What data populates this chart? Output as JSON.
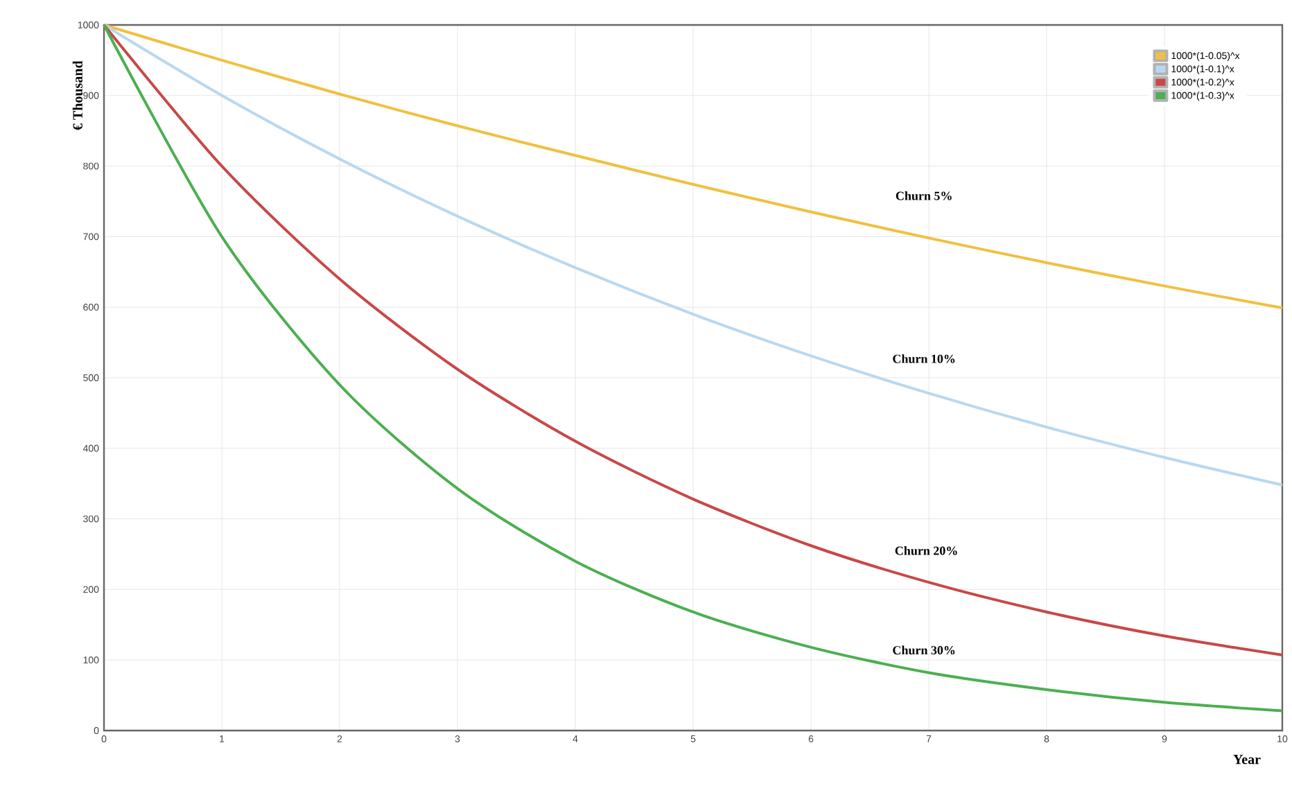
{
  "chart_data": {
    "type": "line",
    "xlabel": "Year",
    "ylabel": "€ Thousand",
    "x": [
      0,
      1,
      2,
      3,
      4,
      5,
      6,
      7,
      8,
      9,
      10
    ],
    "series": [
      {
        "name": "1000*(1-0.05)^x",
        "color": "#f0c040",
        "values": [
          1000,
          950,
          902,
          857,
          815,
          774,
          735,
          698,
          663,
          630,
          599
        ]
      },
      {
        "name": "1000*(1-0.1)^x",
        "color": "#b8d8f0",
        "values": [
          1000,
          900,
          810,
          729,
          656,
          590,
          531,
          478,
          430,
          387,
          348
        ]
      },
      {
        "name": "1000*(1-0.2)^x",
        "color": "#c84848",
        "values": [
          1000,
          800,
          640,
          512,
          410,
          328,
          262,
          210,
          168,
          134,
          107
        ]
      },
      {
        "name": "1000*(1-0.3)^x",
        "color": "#4caf50",
        "values": [
          1000,
          700,
          490,
          343,
          240,
          168,
          118,
          82,
          58,
          40,
          28
        ]
      }
    ],
    "xlim": [
      0,
      10
    ],
    "ylim": [
      0,
      1000
    ],
    "xticks": [
      0,
      1,
      2,
      3,
      4,
      5,
      6,
      7,
      8,
      9,
      10
    ],
    "yticks": [
      0,
      100,
      200,
      300,
      400,
      500,
      600,
      700,
      800,
      900,
      1000
    ],
    "grid": true,
    "legend": "top right",
    "marker": "none",
    "line_style": "solid",
    "annotations": [
      "Churn 5%",
      "Churn 10%",
      "Churn 20%",
      "Churn 30%"
    ]
  }
}
